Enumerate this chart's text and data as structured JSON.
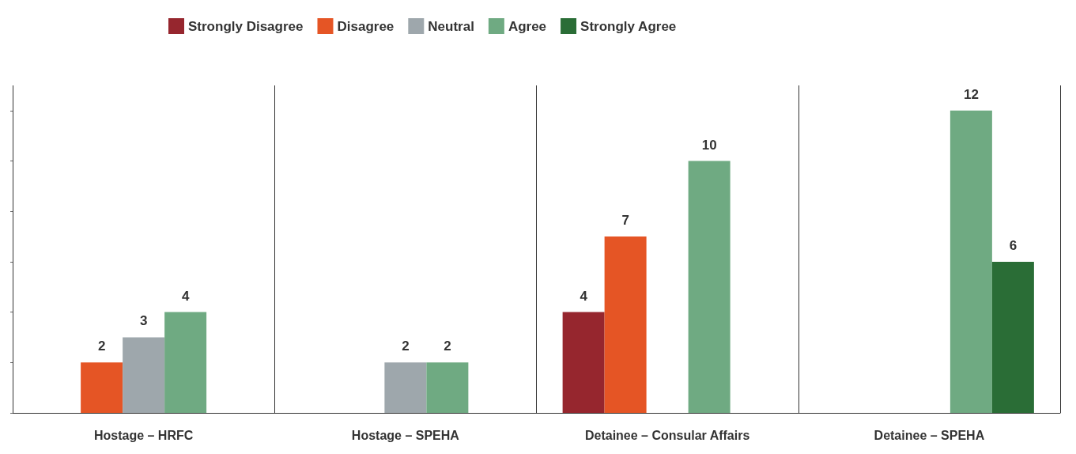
{
  "chart_data": {
    "type": "bar",
    "categories": [
      "Hostage – HRFC",
      "Hostage – SPEHA",
      "Detainee – Consular Affairs",
      "Detainee – SPEHA"
    ],
    "series": [
      {
        "name": "Strongly Disagree",
        "color": "#96262e",
        "values": [
          null,
          null,
          4,
          null
        ]
      },
      {
        "name": "Disagree",
        "color": "#e55525",
        "values": [
          2,
          null,
          7,
          null
        ]
      },
      {
        "name": "Neutral",
        "color": "#9ea7ac",
        "values": [
          3,
          2,
          null,
          null
        ]
      },
      {
        "name": "Agree",
        "color": "#6faa82",
        "values": [
          4,
          2,
          10,
          12
        ]
      },
      {
        "name": "Strongly Agree",
        "color": "#2a6d36",
        "values": [
          null,
          null,
          null,
          6
        ]
      }
    ],
    "ylim": [
      0,
      13
    ],
    "yticks": [
      {
        "value": 0,
        "label": null
      },
      {
        "value": 2,
        "label": null
      },
      {
        "value": 4,
        "label": null
      },
      {
        "value": 6,
        "label": null
      },
      {
        "value": 8,
        "label": null
      },
      {
        "value": 10,
        "label": null
      },
      {
        "value": 12,
        "label": null
      }
    ],
    "tick_labels": "x",
    "grid": "x",
    "legend": "top left",
    "data_labels": true
  }
}
